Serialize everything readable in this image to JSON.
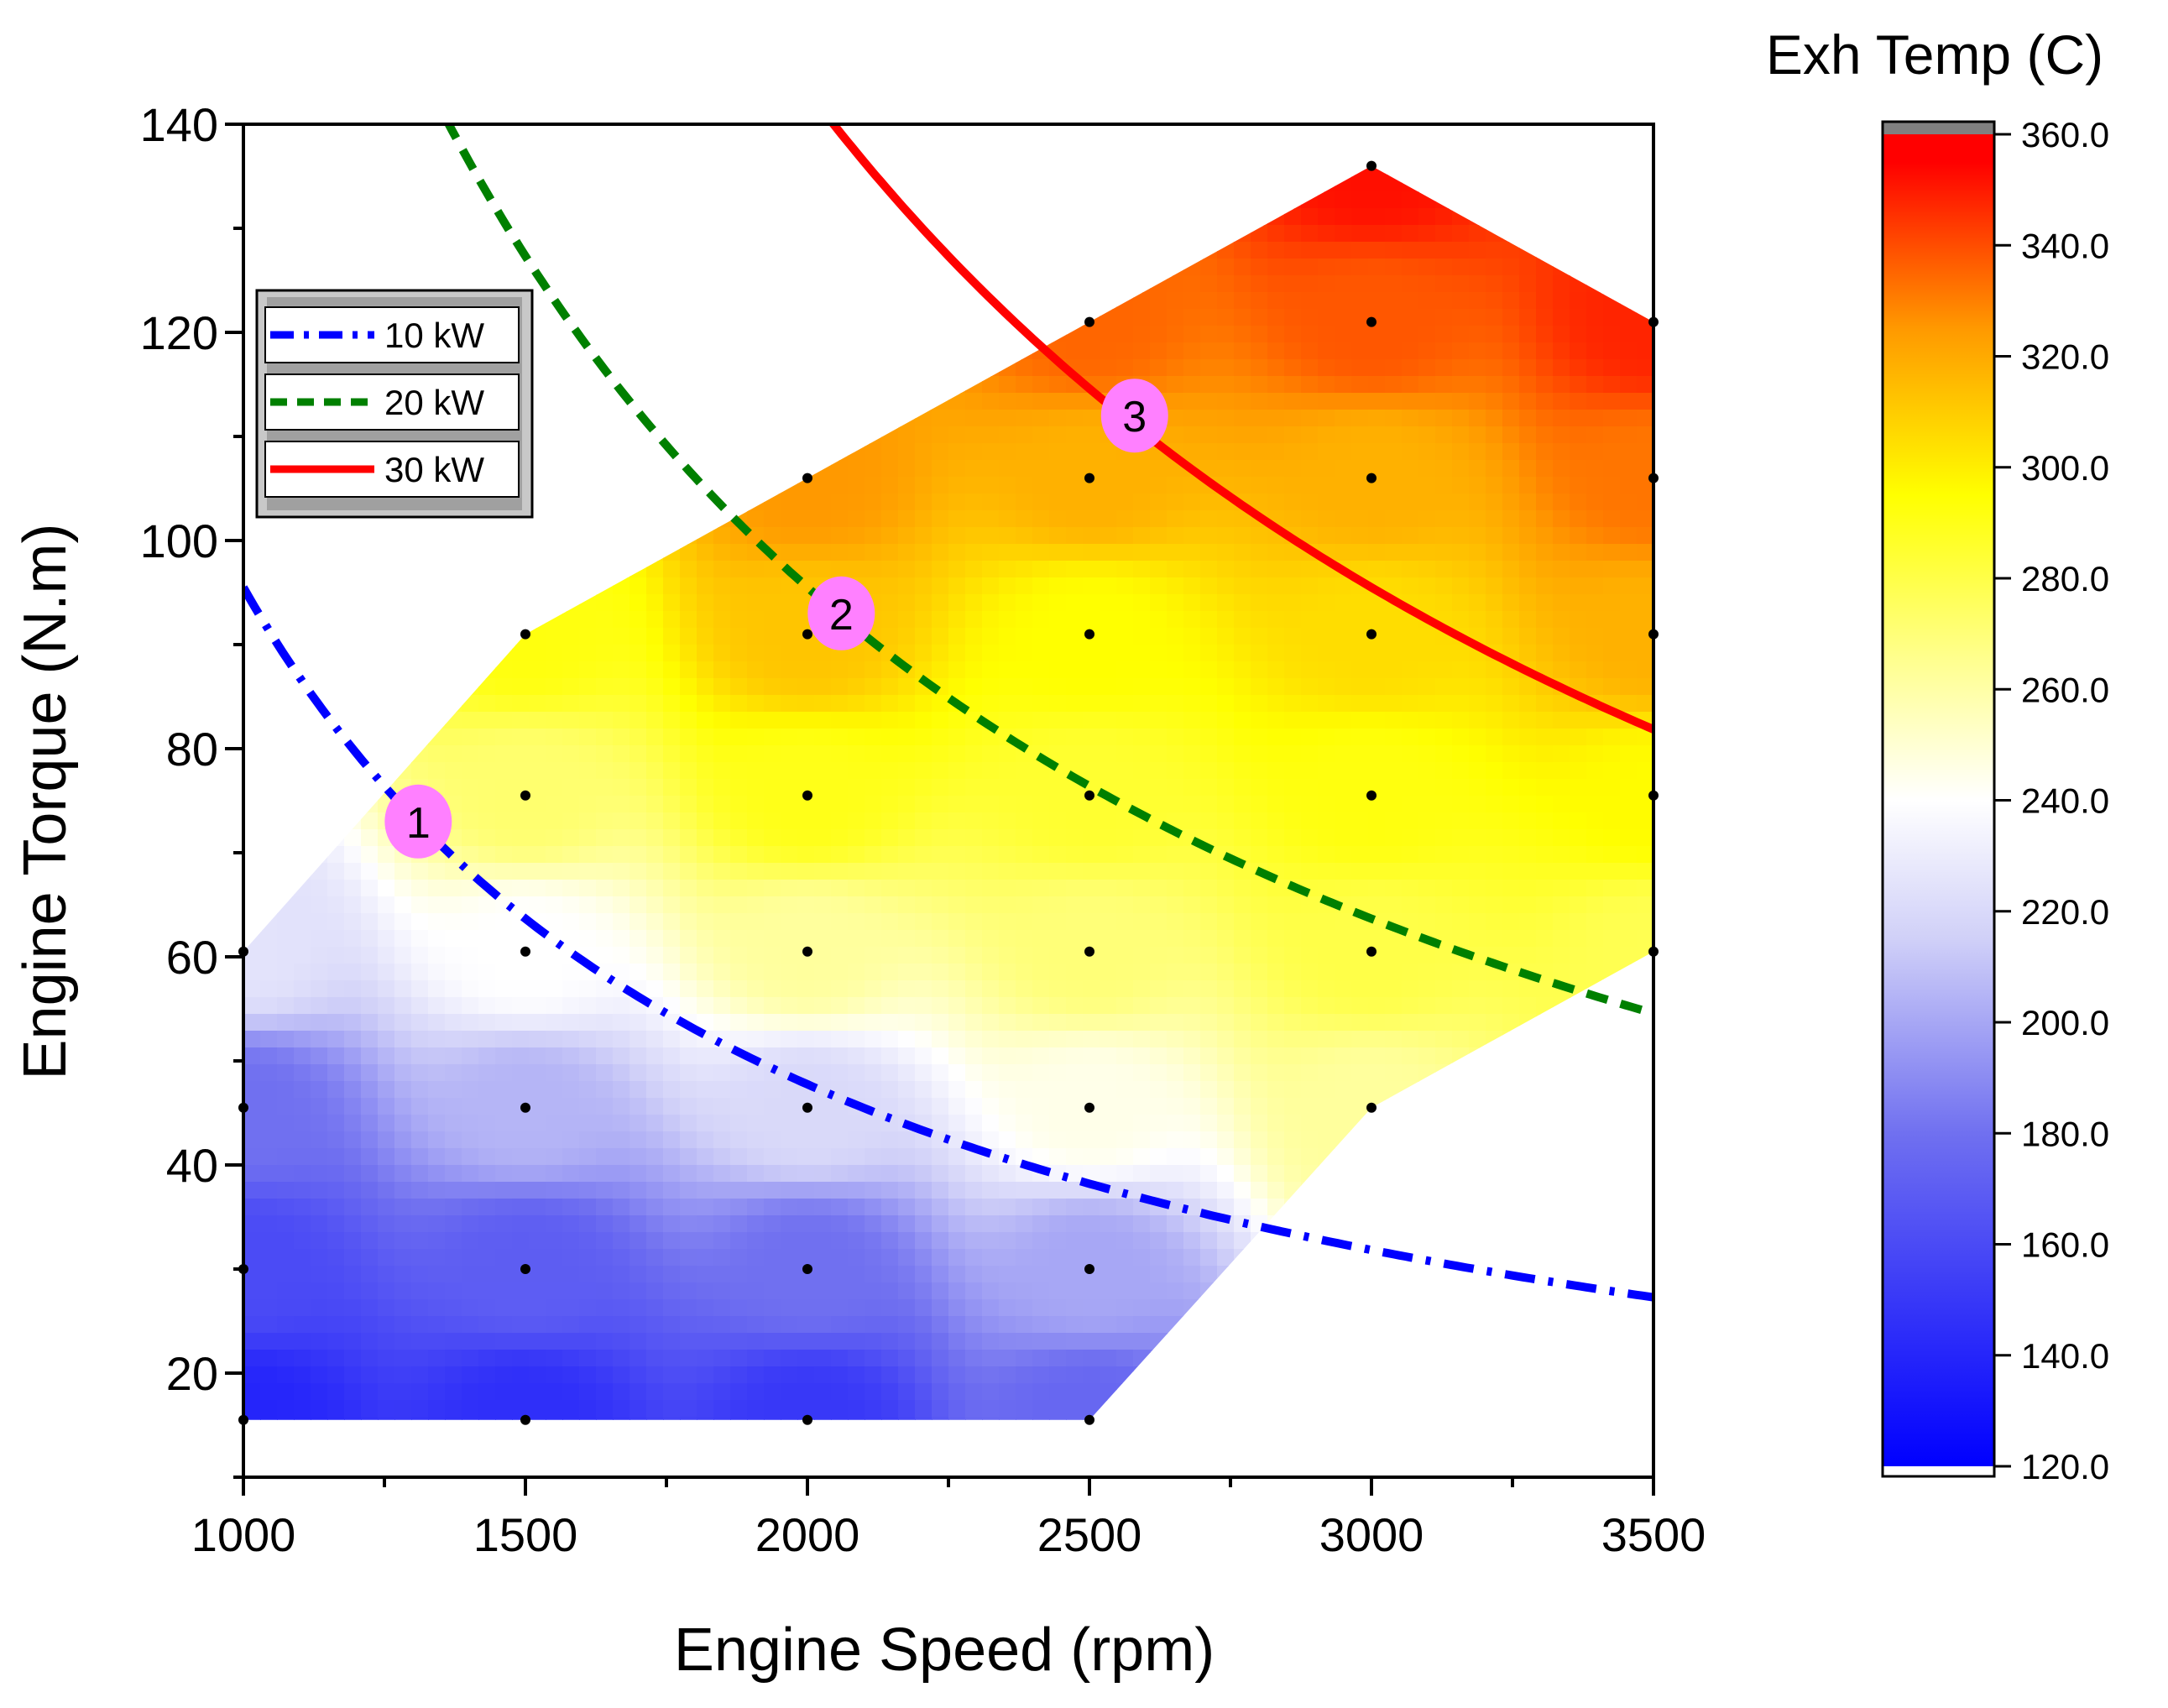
{
  "chart_data": {
    "type": "contour",
    "xlabel": "Engine Speed (rpm)",
    "ylabel": "Engine Torque (N.m)",
    "xlim": [
      1000,
      3500
    ],
    "ylim": [
      10,
      140
    ],
    "xticks": [
      1000,
      1500,
      2000,
      2500,
      3000,
      3500
    ],
    "yticks": [
      20,
      40,
      60,
      80,
      100,
      120,
      140
    ],
    "colorbar": {
      "title": "Exh Temp (C)",
      "range": [
        120,
        360
      ],
      "ticks": [
        "120.0",
        "140.0",
        "160.0",
        "180.0",
        "200.0",
        "220.0",
        "240.0",
        "260.0",
        "280.0",
        "300.0",
        "320.0",
        "340.0",
        "360.0"
      ],
      "stops": [
        {
          "value": 120,
          "color": "#0000ff"
        },
        {
          "value": 180,
          "color": "#7070f0"
        },
        {
          "value": 215,
          "color": "#d0d0f8"
        },
        {
          "value": 240,
          "color": "#ffffff"
        },
        {
          "value": 265,
          "color": "#ffff90"
        },
        {
          "value": 295,
          "color": "#ffff00"
        },
        {
          "value": 325,
          "color": "#ff9900"
        },
        {
          "value": 355,
          "color": "#ff0000"
        }
      ],
      "over_color": "#808080"
    },
    "grid_points": [
      {
        "x": 1000,
        "y": 15.5,
        "t": 140
      },
      {
        "x": 1000,
        "y": 30,
        "t": 160
      },
      {
        "x": 1000,
        "y": 45.5,
        "t": 180
      },
      {
        "x": 1000,
        "y": 60.5,
        "t": 225
      },
      {
        "x": 1500,
        "y": 15.5,
        "t": 145
      },
      {
        "x": 1500,
        "y": 30,
        "t": 170
      },
      {
        "x": 1500,
        "y": 45.5,
        "t": 205
      },
      {
        "x": 1500,
        "y": 60.5,
        "t": 240
      },
      {
        "x": 1500,
        "y": 75.5,
        "t": 272
      },
      {
        "x": 1500,
        "y": 91,
        "t": 292
      },
      {
        "x": 2000,
        "y": 15.5,
        "t": 150
      },
      {
        "x": 2000,
        "y": 30,
        "t": 180
      },
      {
        "x": 2000,
        "y": 45.5,
        "t": 220
      },
      {
        "x": 2000,
        "y": 60.5,
        "t": 262
      },
      {
        "x": 2000,
        "y": 75.5,
        "t": 290
      },
      {
        "x": 2000,
        "y": 91,
        "t": 312
      },
      {
        "x": 2000,
        "y": 106,
        "t": 325
      },
      {
        "x": 2500,
        "y": 15.5,
        "t": 175
      },
      {
        "x": 2500,
        "y": 30,
        "t": 200
      },
      {
        "x": 2500,
        "y": 45.5,
        "t": 245
      },
      {
        "x": 2500,
        "y": 60.5,
        "t": 270
      },
      {
        "x": 2500,
        "y": 75.5,
        "t": 285
      },
      {
        "x": 2500,
        "y": 91,
        "t": 295
      },
      {
        "x": 2500,
        "y": 106,
        "t": 318
      },
      {
        "x": 2500,
        "y": 121,
        "t": 335
      },
      {
        "x": 3000,
        "y": 45.5,
        "t": 262
      },
      {
        "x": 3000,
        "y": 60.5,
        "t": 280
      },
      {
        "x": 3000,
        "y": 75.5,
        "t": 292
      },
      {
        "x": 3000,
        "y": 91,
        "t": 305
      },
      {
        "x": 3000,
        "y": 106,
        "t": 318
      },
      {
        "x": 3000,
        "y": 121,
        "t": 338
      },
      {
        "x": 3000,
        "y": 136,
        "t": 352
      },
      {
        "x": 3500,
        "y": 60.5,
        "t": 278
      },
      {
        "x": 3500,
        "y": 75.5,
        "t": 296
      },
      {
        "x": 3500,
        "y": 91,
        "t": 318
      },
      {
        "x": 3500,
        "y": 106,
        "t": 332
      },
      {
        "x": 3500,
        "y": 121,
        "t": 348
      }
    ],
    "data_hull": [
      [
        1000,
        15.5
      ],
      [
        2500,
        15.5
      ],
      [
        3000,
        45.5
      ],
      [
        3500,
        60.5
      ],
      [
        3500,
        121
      ],
      [
        3000,
        136
      ],
      [
        2500,
        121
      ],
      [
        2000,
        106
      ],
      [
        1500,
        91
      ],
      [
        1000,
        60.5
      ]
    ],
    "series": [
      {
        "name": "10 kW",
        "power_kw": 10,
        "color": "#0000ff",
        "style": "dash-dot"
      },
      {
        "name": "20 kW",
        "power_kw": 20,
        "color": "#008000",
        "style": "dash"
      },
      {
        "name": "30 kW",
        "power_kw": 30,
        "color": "#ff0000",
        "style": "solid"
      }
    ],
    "markers": [
      {
        "label": "1",
        "x": 1310,
        "y": 73
      },
      {
        "label": "2",
        "x": 2060,
        "y": 93
      },
      {
        "label": "3",
        "x": 2580,
        "y": 112
      }
    ],
    "marker_color": "#ff80ff",
    "legend_position": "top-left"
  }
}
